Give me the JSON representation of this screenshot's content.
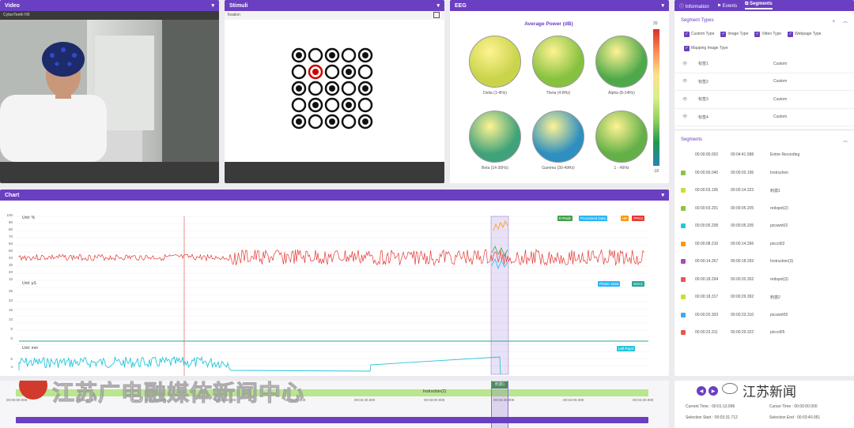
{
  "video": {
    "title": "Video",
    "subtitle": "CyberTeeth H0"
  },
  "stimuli": {
    "title": "Stimuli",
    "subtitle": "fixation"
  },
  "eeg": {
    "title": "EEG",
    "heading": "Average Power (dB)",
    "scale_max": "20",
    "scale_min": "-10",
    "maps": [
      {
        "label": "Delta (1-4Hz)",
        "color": "#c9d44a"
      },
      {
        "label": "Theta (4-8Hz)",
        "color": "#86c23f"
      },
      {
        "label": "Alpha (8-14Hz)",
        "color": "#4ea94a"
      },
      {
        "label": "Beta (14-30Hz)",
        "color": "#3fa27a"
      },
      {
        "label": "Gamma (30-49Hz)",
        "color": "#2e8fc0"
      },
      {
        "label": "1 - 49Hz",
        "color": "#63b048"
      }
    ]
  },
  "sidebar": {
    "tabs": [
      "Information",
      "Events",
      "Segments"
    ],
    "active_tab": "Segments",
    "segment_types_title": "Segment Types",
    "checkboxes": [
      "Custom Type",
      "Image Type",
      "Video Type",
      "Webpage Type",
      "Mapping Image Type"
    ],
    "types": [
      {
        "name": "标签1",
        "kind": "Custom"
      },
      {
        "name": "标签2",
        "kind": "Custom"
      },
      {
        "name": "标签3",
        "kind": "Custom"
      },
      {
        "name": "标签4",
        "kind": "Custom"
      }
    ],
    "segments_title": "Segments",
    "segments": [
      {
        "start": "00:00:00.002",
        "end": "00:04:41.588",
        "name": "Entire Recording",
        "color": "#ffffff"
      },
      {
        "start": "00:00:00.040",
        "end": "00:00:03.196",
        "name": "Instruction",
        "color": "#8bc34a"
      },
      {
        "start": "00:00:03.195",
        "end": "00:00:14.323",
        "name": "刺激1",
        "color": "#cddc39"
      },
      {
        "start": "00:00:03.201",
        "end": "00:00:05.205",
        "name": "redspot(2)",
        "color": "#8bc34a"
      },
      {
        "start": "00:00:05.208",
        "end": "00:00:05.205",
        "name": "picswnt02",
        "color": "#26c6da"
      },
      {
        "start": "00:00:08.210",
        "end": "00:00:14.266",
        "name": "piccol02",
        "color": "#ff9800"
      },
      {
        "start": "00:00:14.267",
        "end": "00:00:18.293",
        "name": "Instruction(3)",
        "color": "#ab47bc"
      },
      {
        "start": "00:00:18.294",
        "end": "00:00:20.302",
        "name": "redspot(3)",
        "color": "#ef5350"
      },
      {
        "start": "00:00:18.317",
        "end": "00:00:29.392",
        "name": "刺激2",
        "color": "#cddc39"
      },
      {
        "start": "00:00:20.303",
        "end": "00:00:23.310",
        "name": "picswnt05",
        "color": "#42a5f5"
      },
      {
        "start": "00:00:23.311",
        "end": "00:00:29.322",
        "name": "piccol05",
        "color": "#ef5350"
      }
    ]
  },
  "chart": {
    "title": "Chart",
    "unit1": "Unit: %",
    "unit2": "Unit: μS",
    "unit3": "Unit: mm",
    "legend1": [
      {
        "label": "R-Peak",
        "color": "#43a047"
      },
      {
        "label": "Processed Data",
        "color": "#29b6f6"
      },
      {
        "label": "HR",
        "color": "#ff9800"
      },
      {
        "label": "PPG1",
        "color": "#e53935"
      }
    ],
    "legend2": [
      {
        "label": "Phasic Data",
        "color": "#29b6f6"
      },
      {
        "label": "EDA1",
        "color": "#26a69a"
      }
    ],
    "legend3": [
      {
        "label": "Left Pupil",
        "color": "#26c6da"
      }
    ],
    "yticks1": [
      "100",
      "90",
      "80",
      "70",
      "60",
      "50",
      "40",
      "30",
      "20",
      "10"
    ],
    "yticks2": [
      "25",
      "20",
      "15",
      "10",
      "5",
      "0"
    ],
    "yticks3": [
      "5",
      "4"
    ]
  },
  "timeline": {
    "ticks": [
      "00:00:00.000",
      "00:00:30.000",
      "00:01:00.000",
      "00:01:30.000",
      "00:02:00.000",
      "00:02:30.000",
      "00:03:00.000",
      "00:03:30.000",
      "00:04:00.000",
      "00:04:30.000"
    ],
    "segment_label": "Instruction(2)",
    "marker_label": "刺激1"
  },
  "status": {
    "current_time": "Current Time : 00:01:13.996",
    "cursor_time": "Cursor Time : 00:00:00.000",
    "selection_start": "Selection Start : 00:03:31.712",
    "selection_end": "Selection End : 00:03:40.051"
  },
  "watermark": {
    "broadcaster": "江苏广电融媒体新闻中心",
    "wechat": "江苏新闻"
  }
}
